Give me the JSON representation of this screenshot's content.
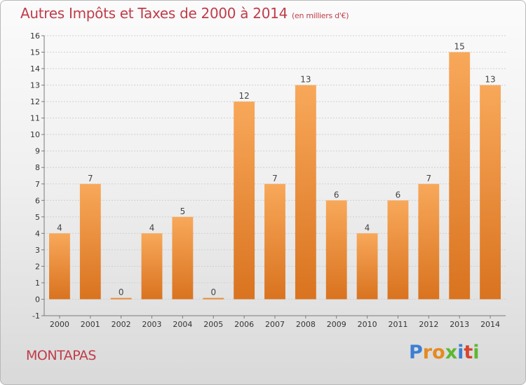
{
  "title": "Autres Impôts et Taxes de 2000 à 2014",
  "title_unit": "(en milliers d'€)",
  "commune": "MONTAPAS",
  "logo": {
    "letters": [
      "P",
      "r",
      "o",
      "x",
      "i",
      "t",
      "i"
    ],
    "colors": [
      "#3a7fd4",
      "#e58a1f",
      "#e58a1f",
      "#5cb832",
      "#3a7fd4",
      "#d6452e",
      "#5cb832"
    ]
  },
  "colors": {
    "title": "#c03c4a",
    "bar_light": "#f8a85a",
    "bar_dark": "#d9731f",
    "grid": "#d0d0d0",
    "axis": "#7a7a7a"
  },
  "chart_data": {
    "type": "bar",
    "title": "Autres Impôts et Taxes de 2000 à 2014",
    "ylabel": "",
    "xlabel": "",
    "categories": [
      "2000",
      "2001",
      "2002",
      "2003",
      "2004",
      "2005",
      "2006",
      "2007",
      "2008",
      "2009",
      "2010",
      "2011",
      "2012",
      "2013",
      "2014"
    ],
    "values": [
      4,
      7,
      0,
      4,
      5,
      0,
      12,
      7,
      13,
      6,
      4,
      6,
      7,
      15,
      13
    ],
    "ylim": [
      -1,
      16
    ],
    "yticks": [
      -1,
      0,
      1,
      2,
      3,
      4,
      5,
      6,
      7,
      8,
      9,
      10,
      11,
      12,
      13,
      14,
      15,
      16
    ],
    "grid": true
  }
}
